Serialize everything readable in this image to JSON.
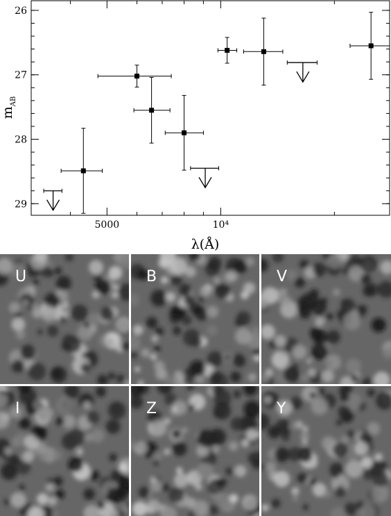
{
  "chart_data": {
    "type": "scatter",
    "xlabel": "λ(Å)",
    "ylabel_main": "m",
    "ylabel_sub": "AB",
    "xscale": "log",
    "xlim": [
      3150,
      28000
    ],
    "ylim": [
      29.18,
      25.85
    ],
    "y_inverted": true,
    "grid": false,
    "x_ticks": [
      {
        "value": 5000,
        "label": "5000"
      },
      {
        "value": 10000,
        "label": "10⁴"
      }
    ],
    "x_minor_ticks": [
      4000,
      6000,
      7000,
      8000,
      9000,
      20000
    ],
    "y_ticks": [
      {
        "value": 26,
        "label": "26"
      },
      {
        "value": 27,
        "label": "27"
      },
      {
        "value": 28,
        "label": "28"
      },
      {
        "value": 29,
        "label": "29"
      }
    ],
    "y_minor_step": 0.2,
    "detections": [
      {
        "x": 4330,
        "xerr": [
          550,
          530
        ],
        "y": 28.49,
        "yerr": 0.66
      },
      {
        "x": 6000,
        "xerr": [
          1270,
          1400
        ],
        "y": 27.02,
        "yerr": 0.17
      },
      {
        "x": 6560,
        "xerr": [
          670,
          780
        ],
        "y": 27.55,
        "yerr": 0.51
      },
      {
        "x": 8000,
        "xerr": [
          870,
          1000
        ],
        "y": 27.9,
        "yerr": 0.58
      },
      {
        "x": 10400,
        "xerr": [
          570,
          630
        ],
        "y": 26.62,
        "yerr": 0.2
      },
      {
        "x": 13000,
        "xerr": [
          1500,
          1600
        ],
        "y": 26.64,
        "yerr": 0.52
      },
      {
        "x": 25000,
        "xerr": [
          3000,
          3000
        ],
        "y": 26.55,
        "yerr": 0.52
      }
    ],
    "upper_limits": [
      {
        "x": 3600,
        "xerr": [
          200,
          200
        ],
        "y": 28.8
      },
      {
        "x": 9100,
        "xerr": [
          780,
          780
        ],
        "y": 28.45
      },
      {
        "x": 16500,
        "xerr": [
          1500,
          1500
        ],
        "y": 26.81
      }
    ]
  },
  "cutouts": {
    "labels": [
      "U",
      "B",
      "V",
      "I",
      "Z",
      "Y"
    ],
    "marker_color": "#ffffff"
  }
}
